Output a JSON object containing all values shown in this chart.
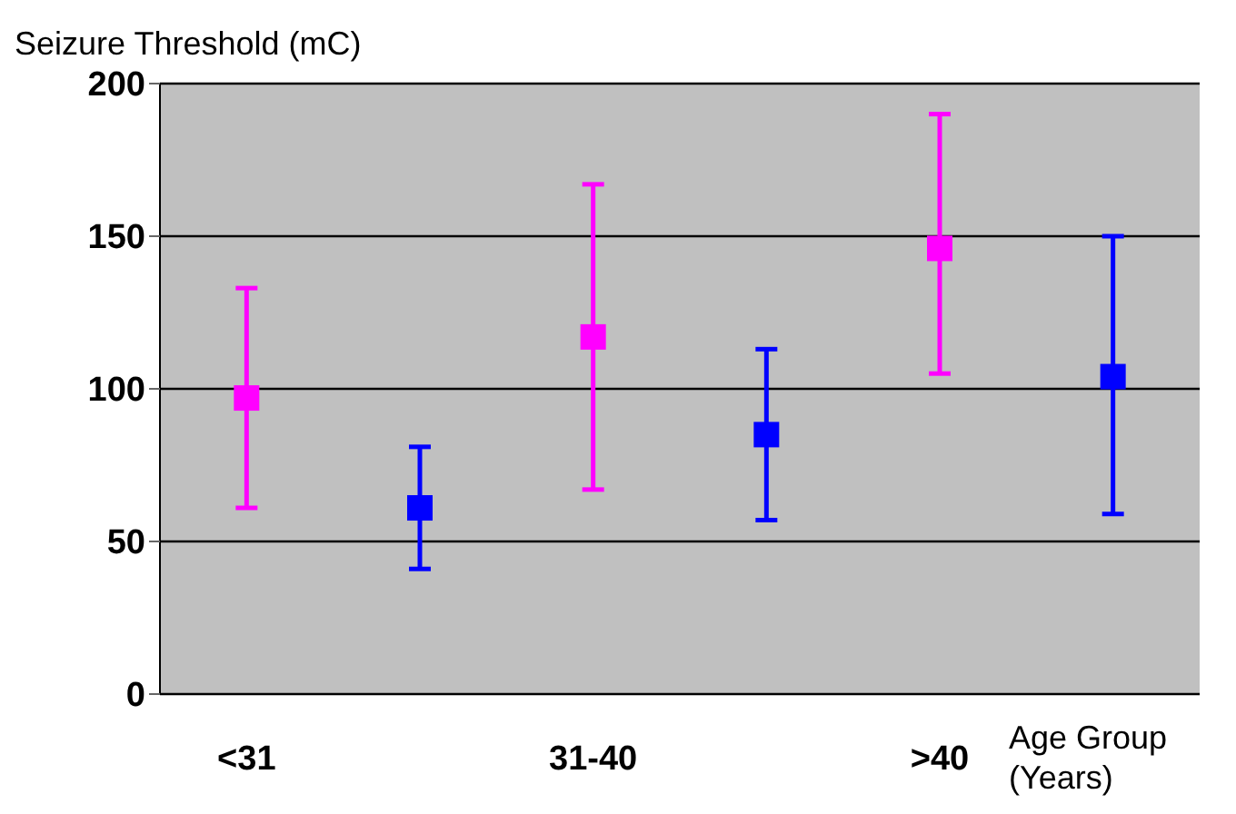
{
  "chart_data": {
    "type": "scatter",
    "ylabel": "Seizure Threshold (mC)",
    "xlabel": "Age Group (Years)",
    "categories": [
      "<31",
      null,
      "31-40",
      null,
      ">40",
      null
    ],
    "series": [
      {
        "color": "#ff00ff",
        "values": [
          97,
          null,
          117,
          null,
          146,
          null
        ],
        "errors": [
          [
            61,
            133
          ],
          null,
          [
            67,
            167
          ],
          null,
          [
            105,
            190
          ],
          null
        ]
      },
      {
        "color": "#0000ff",
        "values": [
          null,
          61,
          null,
          85,
          null,
          104
        ],
        "errors": [
          null,
          [
            41,
            81
          ],
          null,
          [
            57,
            113
          ],
          null,
          [
            59,
            150
          ]
        ]
      }
    ],
    "ylim": [
      0,
      200
    ],
    "yticks": [
      0,
      50,
      100,
      150,
      200
    ],
    "grid": "y",
    "marker": "square",
    "legend": false
  }
}
